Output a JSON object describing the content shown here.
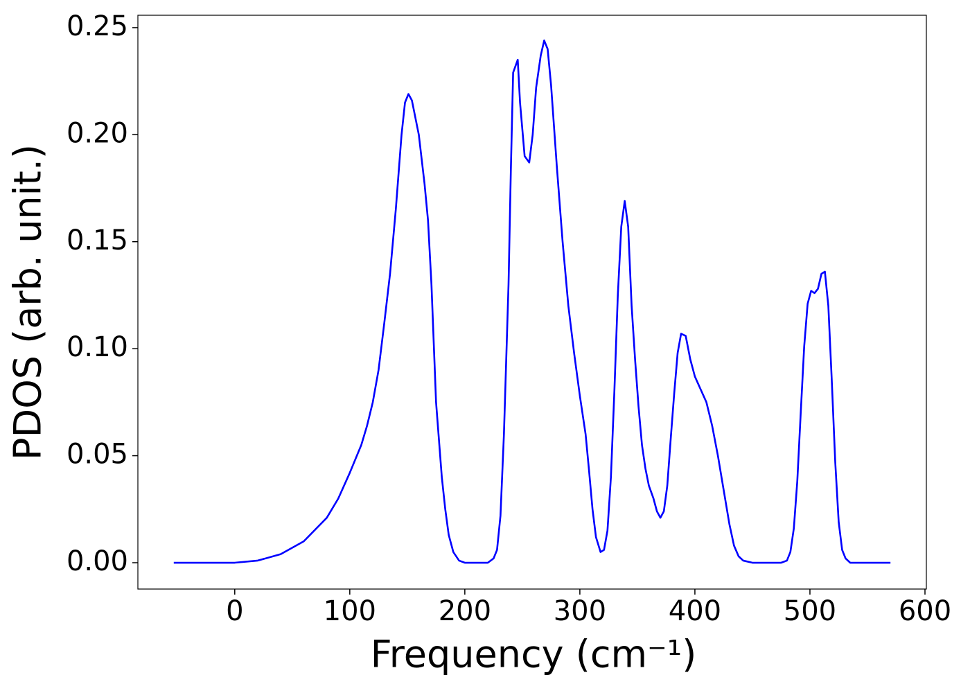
{
  "chart_data": {
    "type": "line",
    "xlabel": "Frequency (cm⁻¹)",
    "ylabel": "PDOS (arb. unit.)",
    "x": [
      -53,
      0,
      20,
      40,
      60,
      80,
      90,
      100,
      110,
      115,
      120,
      125,
      130,
      135,
      140,
      145,
      148,
      151,
      154,
      160,
      165,
      168,
      171,
      175,
      180,
      183,
      186,
      190,
      195,
      200,
      220,
      225,
      228,
      231,
      234,
      238,
      240,
      242,
      246,
      248,
      252,
      256,
      259,
      262,
      266,
      269,
      272,
      275,
      280,
      285,
      290,
      295,
      300,
      305,
      308,
      311,
      314,
      318,
      321,
      324,
      327,
      330,
      333,
      336,
      339,
      342,
      345,
      348,
      351,
      354,
      357,
      360,
      364,
      367,
      370,
      373,
      376,
      379,
      382,
      385,
      388,
      392,
      396,
      400,
      405,
      410,
      415,
      420,
      425,
      430,
      434,
      438,
      442,
      450,
      475,
      480,
      483,
      486,
      489,
      492,
      495,
      498,
      501,
      504,
      507,
      510,
      513,
      516,
      519,
      522,
      525,
      528,
      531,
      535,
      570
    ],
    "series": [
      {
        "name": "PDOS",
        "color": "#0000ff",
        "values": [
          0,
          0,
          0.001,
          0.004,
          0.01,
          0.021,
          0.03,
          0.042,
          0.055,
          0.064,
          0.075,
          0.09,
          0.112,
          0.135,
          0.165,
          0.2,
          0.215,
          0.219,
          0.216,
          0.2,
          0.177,
          0.16,
          0.13,
          0.075,
          0.04,
          0.025,
          0.013,
          0.005,
          0.001,
          0,
          0,
          0.002,
          0.006,
          0.022,
          0.06,
          0.13,
          0.183,
          0.229,
          0.235,
          0.215,
          0.19,
          0.187,
          0.2,
          0.222,
          0.237,
          0.244,
          0.24,
          0.223,
          0.185,
          0.15,
          0.12,
          0.098,
          0.078,
          0.06,
          0.043,
          0.025,
          0.012,
          0.005,
          0.006,
          0.015,
          0.04,
          0.08,
          0.125,
          0.157,
          0.169,
          0.157,
          0.12,
          0.095,
          0.073,
          0.055,
          0.044,
          0.036,
          0.03,
          0.024,
          0.021,
          0.024,
          0.036,
          0.058,
          0.079,
          0.098,
          0.107,
          0.106,
          0.095,
          0.087,
          0.081,
          0.075,
          0.064,
          0.05,
          0.034,
          0.018,
          0.008,
          0.003,
          0.001,
          0,
          0,
          0.001,
          0.005,
          0.016,
          0.038,
          0.07,
          0.101,
          0.121,
          0.127,
          0.126,
          0.128,
          0.135,
          0.136,
          0.12,
          0.085,
          0.047,
          0.019,
          0.006,
          0.002,
          0,
          0
        ]
      }
    ],
    "xlim": [
      -84.2,
      601.2
    ],
    "ylim": [
      -0.0123,
      0.2558
    ],
    "xticks": [
      0,
      100,
      200,
      300,
      400,
      500,
      600
    ],
    "yticks": [
      {
        "value": 0,
        "label": "0.00"
      },
      {
        "value": 0.05,
        "label": "0.05"
      },
      {
        "value": 0.1,
        "label": "0.10"
      },
      {
        "value": 0.15,
        "label": "0.15"
      },
      {
        "value": 0.2,
        "label": "0.20"
      },
      {
        "value": 0.25,
        "label": "0.25"
      }
    ],
    "grid": false
  }
}
